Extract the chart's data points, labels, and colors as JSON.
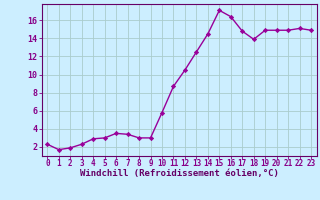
{
  "x": [
    0,
    1,
    2,
    3,
    4,
    5,
    6,
    7,
    8,
    9,
    10,
    11,
    12,
    13,
    14,
    15,
    16,
    17,
    18,
    19,
    20,
    21,
    22,
    23
  ],
  "y": [
    2.3,
    1.7,
    1.9,
    2.3,
    2.9,
    3.0,
    3.5,
    3.4,
    3.0,
    3.0,
    5.8,
    8.7,
    10.5,
    12.5,
    14.5,
    17.1,
    16.4,
    14.8,
    13.9,
    14.9,
    14.9,
    14.9,
    15.1,
    14.9
  ],
  "line_color": "#990099",
  "marker": "D",
  "markersize": 2.2,
  "linewidth": 1.0,
  "bg_color": "#cceeff",
  "grid_color": "#aacccc",
  "axis_color": "#660066",
  "tick_color": "#880088",
  "xlabel": "Windchill (Refroidissement éolien,°C)",
  "xlabel_fontsize": 6.5,
  "xlabel_color": "#660066",
  "ylabel_ticks": [
    2,
    4,
    6,
    8,
    10,
    12,
    14,
    16
  ],
  "xlim": [
    -0.5,
    23.5
  ],
  "ylim": [
    1.0,
    17.8
  ],
  "xtick_fontsize": 5.5,
  "ytick_fontsize": 6.0
}
